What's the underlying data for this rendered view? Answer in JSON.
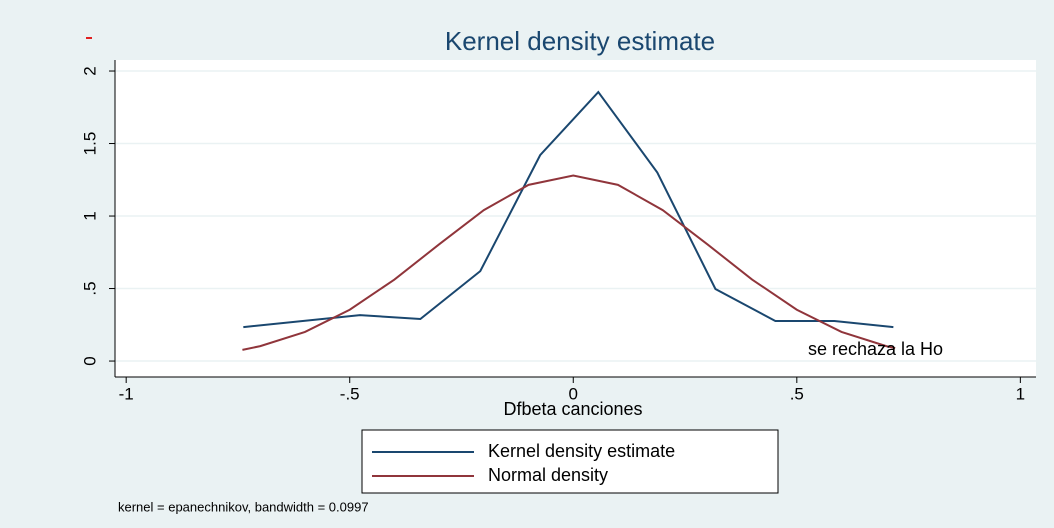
{
  "chart_data": {
    "type": "line",
    "title": "Kernel density estimate",
    "xlabel": "Dfbeta canciones",
    "annotation": "se rechaza la Ho",
    "note": "kernel = epanechnikov, bandwidth = 0.0997",
    "xlim": [
      -1.025,
      1.035
    ],
    "ylim": [
      -0.11,
      2.076
    ],
    "xticks": [
      -1,
      {
        "value": -0.5,
        "label": "-.5"
      },
      0,
      {
        "value": 0.5,
        "label": ".5"
      },
      1
    ],
    "yticks": [
      0,
      {
        "value": 0.5,
        "label": ".5"
      },
      1,
      1.5,
      2
    ],
    "grid": true,
    "legend": "bottom",
    "series": [
      {
        "name": "Kernel density estimate",
        "color": "#1a476f",
        "x": [
          -0.738,
          -0.477,
          -0.342,
          -0.208,
          -0.074,
          0.056,
          0.188,
          0.318,
          0.452,
          0.584,
          0.716
        ],
        "values": [
          0.234,
          0.317,
          0.29,
          0.62,
          1.42,
          1.855,
          1.3,
          0.497,
          0.276,
          0.276,
          0.234
        ]
      },
      {
        "name": "Normal density",
        "color": "#90353b",
        "x": [
          -0.74,
          -0.7,
          -0.6,
          -0.5,
          -0.4,
          -0.3,
          -0.2,
          -0.1,
          0,
          0.1,
          0.2,
          0.3,
          0.4,
          0.5,
          0.6,
          0.7,
          0.72
        ],
        "values": [
          0.077,
          0.103,
          0.201,
          0.354,
          0.562,
          0.805,
          1.041,
          1.215,
          1.279,
          1.215,
          1.041,
          0.805,
          0.562,
          0.354,
          0.201,
          0.103,
          0.089
        ]
      }
    ]
  }
}
